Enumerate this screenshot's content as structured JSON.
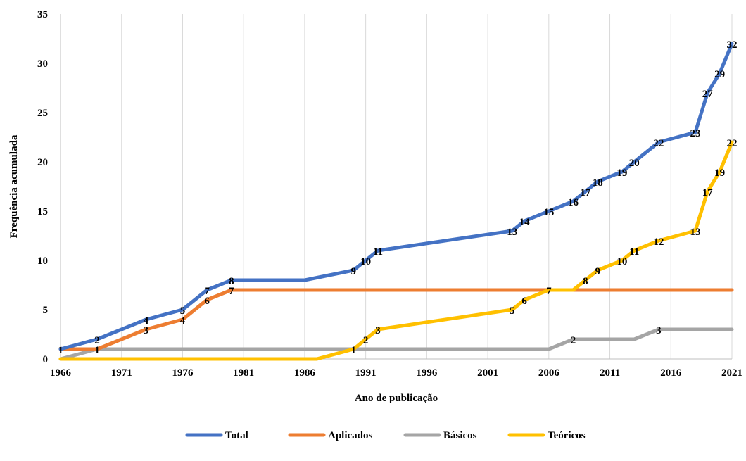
{
  "chart_data": {
    "type": "line",
    "title": "",
    "xlabel": "Ano de publicação",
    "ylabel": "Frequência acumulada",
    "xlim": [
      1966,
      2021
    ],
    "ylim": [
      0,
      35
    ],
    "x_ticks": [
      "1966",
      "1971",
      "1976",
      "1981",
      "1986",
      "1991",
      "1996",
      "2001",
      "2006",
      "2011",
      "2016",
      "2021"
    ],
    "y_ticks": [
      "0",
      "5",
      "10",
      "15",
      "20",
      "25",
      "30",
      "35"
    ],
    "grid": "vertical",
    "legend_position": "bottom",
    "series": [
      {
        "name": "Total",
        "color": "#4472C4",
        "points": [
          [
            1966,
            1
          ],
          [
            1969,
            2
          ],
          [
            1973,
            4
          ],
          [
            1976,
            5
          ],
          [
            1978,
            7
          ],
          [
            1980,
            8
          ],
          [
            1986,
            8
          ],
          [
            1990,
            9
          ],
          [
            1991,
            10
          ],
          [
            1992,
            11
          ],
          [
            2003,
            13
          ],
          [
            2004,
            14
          ],
          [
            2006,
            15
          ],
          [
            2008,
            16
          ],
          [
            2009,
            17
          ],
          [
            2010,
            18
          ],
          [
            2012,
            19
          ],
          [
            2013,
            20
          ],
          [
            2015,
            22
          ],
          [
            2018,
            23
          ],
          [
            2019,
            27
          ],
          [
            2020,
            29
          ],
          [
            2021,
            32
          ]
        ]
      },
      {
        "name": "Aplicados",
        "color": "#ED7D31",
        "points": [
          [
            1966,
            1
          ],
          [
            1969,
            1
          ],
          [
            1973,
            3
          ],
          [
            1976,
            4
          ],
          [
            1978,
            6
          ],
          [
            1980,
            7
          ],
          [
            2021,
            7
          ]
        ]
      },
      {
        "name": "Básicos",
        "color": "#A5A5A5",
        "points": [
          [
            1966,
            0
          ],
          [
            1969,
            1
          ],
          [
            2006,
            1
          ],
          [
            2008,
            2
          ],
          [
            2013,
            2
          ],
          [
            2015,
            3
          ],
          [
            2021,
            3
          ]
        ]
      },
      {
        "name": "Teóricos",
        "color": "#FFC000",
        "points": [
          [
            1966,
            0
          ],
          [
            1987,
            0
          ],
          [
            1990,
            1
          ],
          [
            1991,
            2
          ],
          [
            1992,
            3
          ],
          [
            2003,
            5
          ],
          [
            2004,
            6
          ],
          [
            2006,
            7
          ],
          [
            2008,
            7
          ],
          [
            2009,
            8
          ],
          [
            2010,
            9
          ],
          [
            2012,
            10
          ],
          [
            2013,
            11
          ],
          [
            2015,
            12
          ],
          [
            2018,
            13
          ],
          [
            2019,
            17
          ],
          [
            2020,
            19
          ],
          [
            2021,
            22
          ]
        ]
      }
    ],
    "data_labels": [
      {
        "series": "Total",
        "x": 1966,
        "y": 1,
        "text": "1"
      },
      {
        "series": "Total",
        "x": 1969,
        "y": 2,
        "text": "2"
      },
      {
        "series": "Total",
        "x": 1973,
        "y": 4,
        "text": "4"
      },
      {
        "series": "Total",
        "x": 1976,
        "y": 5,
        "text": "5"
      },
      {
        "series": "Total",
        "x": 1978,
        "y": 7,
        "text": "7"
      },
      {
        "series": "Total",
        "x": 1980,
        "y": 8,
        "text": "8"
      },
      {
        "series": "Total",
        "x": 1990,
        "y": 9,
        "text": "9"
      },
      {
        "series": "Total",
        "x": 1991,
        "y": 10,
        "text": "10"
      },
      {
        "series": "Total",
        "x": 1992,
        "y": 11,
        "text": "11"
      },
      {
        "series": "Total",
        "x": 2003,
        "y": 13,
        "text": "13"
      },
      {
        "series": "Total",
        "x": 2004,
        "y": 14,
        "text": "14"
      },
      {
        "series": "Total",
        "x": 2006,
        "y": 15,
        "text": "15"
      },
      {
        "series": "Total",
        "x": 2008,
        "y": 16,
        "text": "16"
      },
      {
        "series": "Total",
        "x": 2009,
        "y": 17,
        "text": "17"
      },
      {
        "series": "Total",
        "x": 2010,
        "y": 18,
        "text": "18"
      },
      {
        "series": "Total",
        "x": 2012,
        "y": 19,
        "text": "19"
      },
      {
        "series": "Total",
        "x": 2013,
        "y": 20,
        "text": "20"
      },
      {
        "series": "Total",
        "x": 2015,
        "y": 22,
        "text": "22"
      },
      {
        "series": "Total",
        "x": 2018,
        "y": 23,
        "text": "23"
      },
      {
        "series": "Total",
        "x": 2019,
        "y": 27,
        "text": "27"
      },
      {
        "series": "Total",
        "x": 2020,
        "y": 29,
        "text": "29"
      },
      {
        "series": "Total",
        "x": 2021,
        "y": 32,
        "text": "32"
      },
      {
        "series": "Aplicados",
        "x": 1973,
        "y": 3,
        "text": "3"
      },
      {
        "series": "Aplicados",
        "x": 1976,
        "y": 4,
        "text": "4"
      },
      {
        "series": "Aplicados",
        "x": 1978,
        "y": 6,
        "text": "6"
      },
      {
        "series": "Aplicados",
        "x": 1980,
        "y": 7,
        "text": "7"
      },
      {
        "series": "Básicos",
        "x": 1969,
        "y": 1,
        "text": "1"
      },
      {
        "series": "Básicos",
        "x": 2008,
        "y": 2,
        "text": "2"
      },
      {
        "series": "Básicos",
        "x": 2015,
        "y": 3,
        "text": "3"
      },
      {
        "series": "Teóricos",
        "x": 1990,
        "y": 1,
        "text": "1"
      },
      {
        "series": "Teóricos",
        "x": 1991,
        "y": 2,
        "text": "2"
      },
      {
        "series": "Teóricos",
        "x": 1992,
        "y": 3,
        "text": "3"
      },
      {
        "series": "Teóricos",
        "x": 2003,
        "y": 5,
        "text": "5"
      },
      {
        "series": "Teóricos",
        "x": 2004,
        "y": 6,
        "text": "6"
      },
      {
        "series": "Teóricos",
        "x": 2006,
        "y": 7,
        "text": "7"
      },
      {
        "series": "Teóricos",
        "x": 2009,
        "y": 8,
        "text": "8"
      },
      {
        "series": "Teóricos",
        "x": 2010,
        "y": 9,
        "text": "9"
      },
      {
        "series": "Teóricos",
        "x": 2012,
        "y": 10,
        "text": "10"
      },
      {
        "series": "Teóricos",
        "x": 2013,
        "y": 11,
        "text": "11"
      },
      {
        "series": "Teóricos",
        "x": 2015,
        "y": 12,
        "text": "12"
      },
      {
        "series": "Teóricos",
        "x": 2018,
        "y": 13,
        "text": "13"
      },
      {
        "series": "Teóricos",
        "x": 2019,
        "y": 17,
        "text": "17"
      },
      {
        "series": "Teóricos",
        "x": 2020,
        "y": 19,
        "text": "19"
      },
      {
        "series": "Teóricos",
        "x": 2021,
        "y": 22,
        "text": "22"
      }
    ]
  }
}
